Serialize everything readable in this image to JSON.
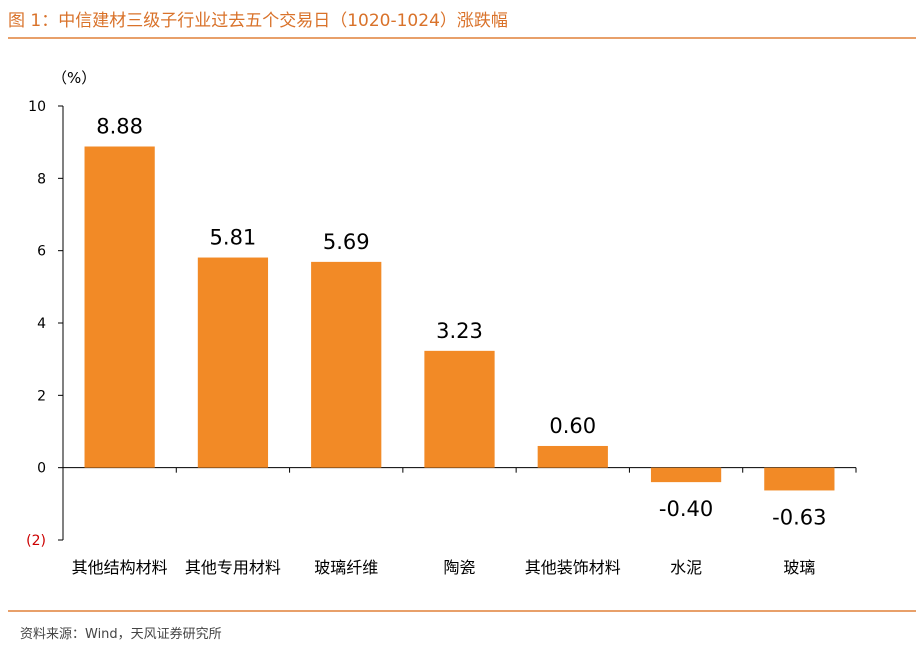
{
  "figure": {
    "title": "图 1：中信建材三级子行业过去五个交易日（1020-1024）涨跌幅",
    "source": "资料来源：Wind，天风证券研究所"
  },
  "chart_data": {
    "type": "bar",
    "title": "",
    "unit_label": "（%）",
    "categories": [
      "其他结构材料",
      "其他专用材料",
      "玻璃纤维",
      "陶瓷",
      "其他装饰材料",
      "水泥",
      "玻璃"
    ],
    "values": [
      8.88,
      5.81,
      5.69,
      3.23,
      0.6,
      -0.4,
      -0.63
    ],
    "value_labels": [
      "8.88",
      "5.81",
      "5.69",
      "3.23",
      "0.60",
      "-0.40",
      "-0.63"
    ],
    "ylim": [
      -2,
      10
    ],
    "yticks": [
      {
        "value": 10,
        "label": "10"
      },
      {
        "value": 8,
        "label": "8"
      },
      {
        "value": 6,
        "label": "6"
      },
      {
        "value": 4,
        "label": "4"
      },
      {
        "value": 2,
        "label": "2"
      },
      {
        "value": 0,
        "label": "0"
      },
      {
        "value": -2,
        "label": "(2)"
      }
    ],
    "bar_color": "#f28a26",
    "negative_tick_color": "#cc0000",
    "axis_color": "#000000"
  }
}
